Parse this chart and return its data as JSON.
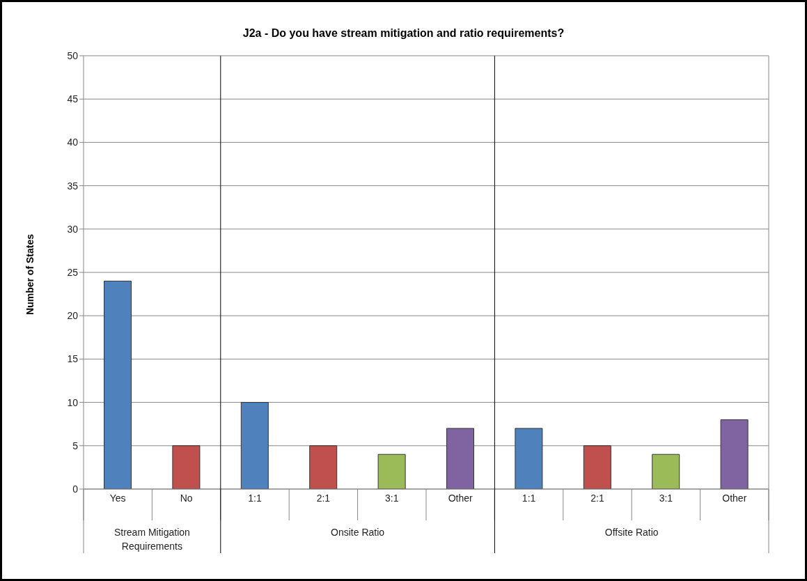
{
  "chart_data": {
    "type": "bar",
    "title": "J2a - Do you have stream mitigation and ratio requirements?",
    "ylabel": "Number of States",
    "categories": [
      "Yes",
      "No",
      "1:1",
      "2:1",
      "3:1",
      "Other",
      "1:1",
      "2:1",
      "3:1",
      "Other"
    ],
    "values": [
      24,
      5,
      10,
      5,
      4,
      7,
      7,
      5,
      4,
      8
    ],
    "colors": [
      "#4f81bd",
      "#c0504d",
      "#4f81bd",
      "#c0504d",
      "#9bbb59",
      "#8064a2",
      "#4f81bd",
      "#c0504d",
      "#9bbb59",
      "#8064a2"
    ],
    "annotations": [
      "Stream Mitigation Requirements",
      "Onsite Ratio",
      "Offsite Ratio"
    ],
    "ylim": [
      0,
      50
    ],
    "yticks": [
      0,
      5,
      10,
      15,
      20,
      25,
      30,
      35,
      40,
      45,
      50
    ],
    "grid": "y"
  }
}
